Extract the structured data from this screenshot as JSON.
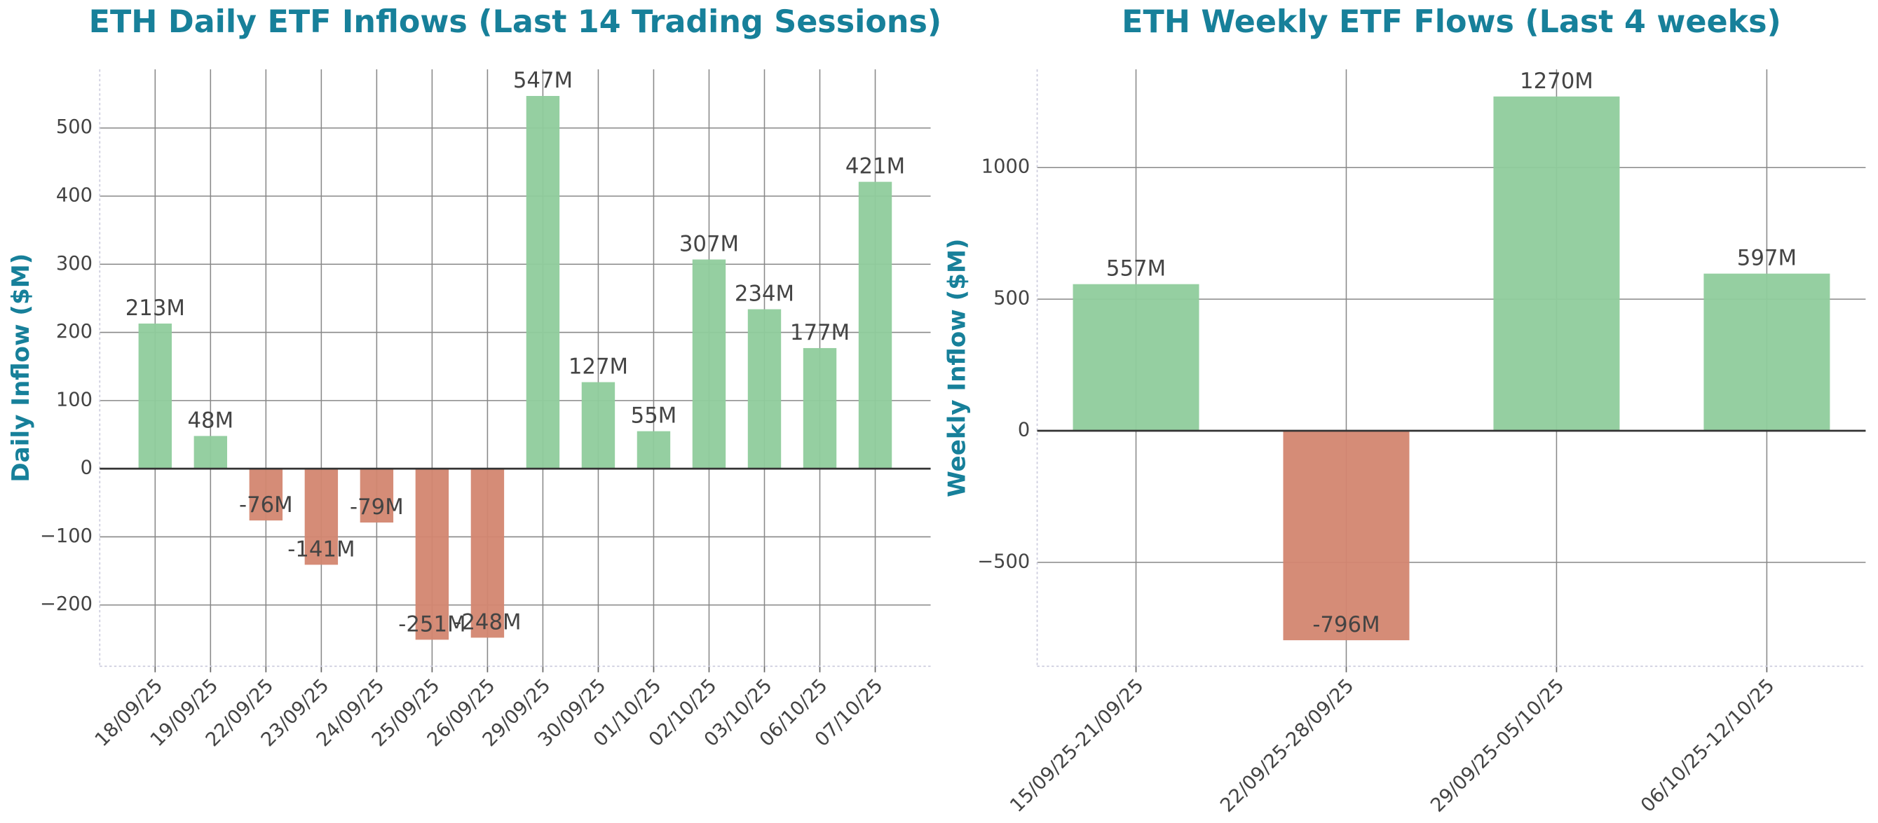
{
  "chart_data": [
    {
      "type": "bar",
      "title": "ETH Daily ETF Inflows (Last 14 Trading Sessions)",
      "y_label": "Daily Inflow ($M)",
      "categories": [
        "18/09/25",
        "19/09/25",
        "22/09/25",
        "23/09/25",
        "24/09/25",
        "25/09/25",
        "26/09/25",
        "29/09/25",
        "30/09/25",
        "01/10/25",
        "02/10/25",
        "03/10/25",
        "06/10/25",
        "07/10/25"
      ],
      "values": [
        213,
        48,
        -76,
        -141,
        -79,
        -251,
        -248,
        547,
        127,
        55,
        307,
        234,
        177,
        421
      ],
      "value_labels": [
        "213M",
        "48M",
        "-76M",
        "-141M",
        "-79M",
        "-251M",
        "-248M",
        "547M",
        "127M",
        "55M",
        "307M",
        "234M",
        "177M",
        "421M"
      ],
      "positive_color": "#8fcc9c",
      "negative_color": "#d38670",
      "ylim": [
        -290,
        586
      ],
      "yticks": [
        {
          "value": -200,
          "label": "−200"
        },
        {
          "value": -100,
          "label": "−100"
        },
        0,
        100,
        200,
        300,
        400,
        500
      ],
      "grid": true
    },
    {
      "type": "bar",
      "title": "ETH Weekly ETF Flows (Last 4 weeks)",
      "y_label": "Weekly Inflow ($M)",
      "categories": [
        "15/09/25-21/09/25",
        "22/09/25-28/09/25",
        "29/09/25-05/10/25",
        "06/10/25-12/10/25"
      ],
      "values": [
        557,
        -796,
        1270,
        597
      ],
      "value_labels": [
        "557M",
        "-796M",
        "1270M",
        "597M"
      ],
      "positive_color": "#8fcc9c",
      "negative_color": "#d38670",
      "ylim": [
        -895,
        1373
      ],
      "yticks": [
        {
          "value": -500,
          "label": "−500"
        },
        0,
        500,
        1000
      ],
      "grid": true
    }
  ]
}
